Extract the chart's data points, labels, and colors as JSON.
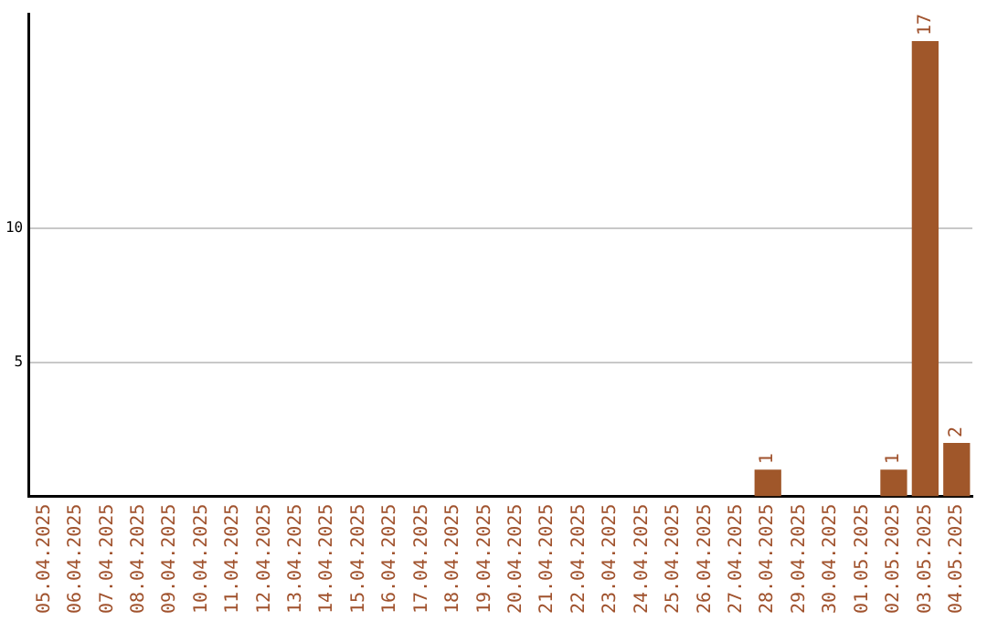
{
  "chart_data": {
    "type": "bar",
    "categories": [
      "05.04.2025",
      "06.04.2025",
      "07.04.2025",
      "08.04.2025",
      "09.04.2025",
      "10.04.2025",
      "11.04.2025",
      "12.04.2025",
      "13.04.2025",
      "14.04.2025",
      "15.04.2025",
      "16.04.2025",
      "17.04.2025",
      "18.04.2025",
      "19.04.2025",
      "20.04.2025",
      "21.04.2025",
      "22.04.2025",
      "23.04.2025",
      "24.04.2025",
      "25.04.2025",
      "26.04.2025",
      "27.04.2025",
      "28.04.2025",
      "29.04.2025",
      "30.04.2025",
      "01.05.2025",
      "02.05.2025",
      "03.05.2025",
      "04.05.2025"
    ],
    "values": [
      0,
      0,
      0,
      0,
      0,
      0,
      0,
      0,
      0,
      0,
      0,
      0,
      0,
      0,
      0,
      0,
      0,
      0,
      0,
      0,
      0,
      0,
      0,
      1,
      0,
      0,
      0,
      1,
      17,
      2
    ],
    "value_labels": [
      null,
      null,
      null,
      null,
      null,
      null,
      null,
      null,
      null,
      null,
      null,
      null,
      null,
      null,
      null,
      null,
      null,
      null,
      null,
      null,
      null,
      null,
      null,
      "1",
      null,
      null,
      null,
      "1",
      "17",
      "2"
    ],
    "color": "#a0572a",
    "ylim": [
      0,
      18
    ],
    "yticks": [
      5,
      10
    ],
    "grid": "y",
    "legend": false
  }
}
